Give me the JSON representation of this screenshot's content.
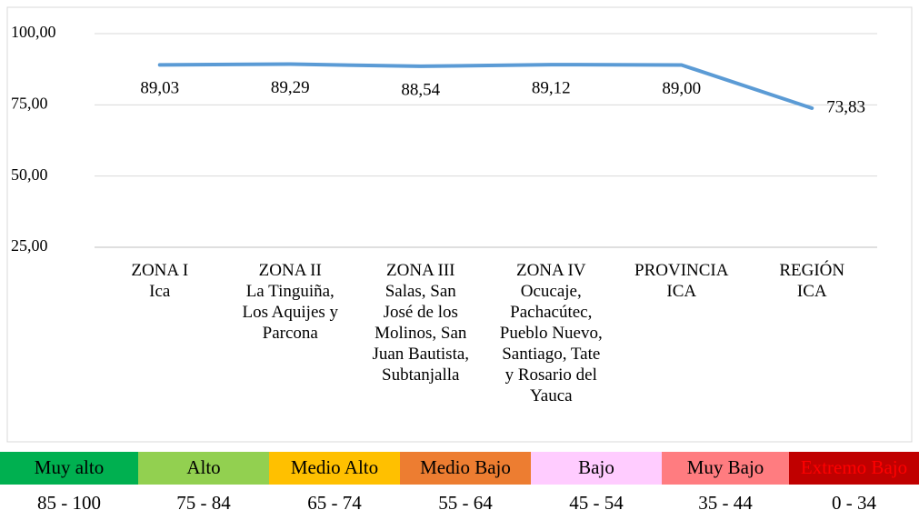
{
  "chart_data": {
    "type": "line",
    "categories": [
      [
        "ZONA I",
        "Ica"
      ],
      [
        "ZONA II",
        "La Tinguiña,",
        "Los Aquijes y",
        "Parcona"
      ],
      [
        "ZONA III",
        "Salas, San",
        "José de los",
        "Molinos, San",
        "Juan Bautista,",
        "Subtanjalla"
      ],
      [
        "ZONA IV",
        "Ocucaje,",
        "Pachacútec,",
        "Pueblo Nuevo,",
        "Santiago, Tate",
        "y Rosario del",
        "Yauca"
      ],
      [
        "PROVINCIA",
        "ICA"
      ],
      [
        "REGIÓN",
        "ICA"
      ]
    ],
    "values": [
      89.03,
      89.29,
      88.54,
      89.12,
      89.0,
      73.83
    ],
    "value_labels": [
      "89,03",
      "89,29",
      "88,54",
      "89,12",
      "89,00",
      "73,83"
    ],
    "color": "#5b9bd5",
    "ylim": [
      25,
      100
    ],
    "yticks": [
      {
        "value": 25,
        "label": "25,00"
      },
      {
        "value": 50,
        "label": "50,00"
      },
      {
        "value": 75,
        "label": "75,00"
      },
      {
        "value": 100,
        "label": "100,00"
      }
    ],
    "grid": true
  },
  "scale": [
    {
      "label": "Muy alto",
      "range": "85 - 100",
      "color": "#00b050"
    },
    {
      "label": "Alto",
      "range": "75 - 84",
      "color": "#92d050"
    },
    {
      "label": "Medio Alto",
      "range": "65 - 74",
      "color": "#ffc000"
    },
    {
      "label": "Medio Bajo",
      "range": "55 - 64",
      "color": "#ed7d31"
    },
    {
      "label": "Bajo",
      "range": "45 - 54",
      "color": "#ffccff"
    },
    {
      "label": "Muy Bajo",
      "range": "35 - 44",
      "color": "#ff7c80"
    },
    {
      "label": "Extremo Bajo",
      "range": "0 - 34",
      "color": "#c00000"
    }
  ]
}
